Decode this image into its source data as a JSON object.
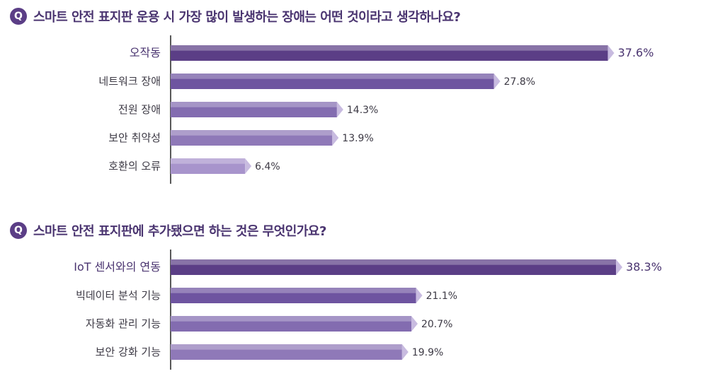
{
  "questions": [
    {
      "icon_label": "Q",
      "title": "스마트 안전 표지판 운용 시 가장 많이 발생하는 장애는 어떤 것이라고 생각하나요?"
    },
    {
      "icon_label": "Q",
      "title": "스마트 안전 표지판에 추가됐으면 하는 것은 무엇인가요?"
    }
  ],
  "colors": {
    "accent": "#5b3e86",
    "bar_shades": [
      "#5b3e86",
      "#6e54a0",
      "#836cb0",
      "#8f79b8",
      "#a894cc"
    ],
    "bar_highlight": "#c8bbe0",
    "text": "#3d3a45"
  },
  "chart_data": [
    {
      "type": "bar",
      "orientation": "horizontal",
      "unit": "%",
      "categories": [
        "오작동",
        "네트워크 장애",
        "전원 장애",
        "보안 취약성",
        "호환의 오류"
      ],
      "values": [
        37.6,
        27.8,
        14.3,
        13.9,
        6.4
      ],
      "value_labels": [
        "37.6%",
        "27.8%",
        "14.3%",
        "13.9%",
        "6.4%"
      ],
      "xlim": [
        0,
        40
      ]
    },
    {
      "type": "bar",
      "orientation": "horizontal",
      "unit": "%",
      "categories": [
        "IoT 센서와의 연동",
        "빅데이터 분석 기능",
        "자동화 관리 기능",
        "보안 강화 기능"
      ],
      "values": [
        38.3,
        21.1,
        20.7,
        19.9
      ],
      "value_labels": [
        "38.3%",
        "21.1%",
        "20.7%",
        "19.9%"
      ],
      "xlim": [
        0,
        40
      ]
    }
  ]
}
